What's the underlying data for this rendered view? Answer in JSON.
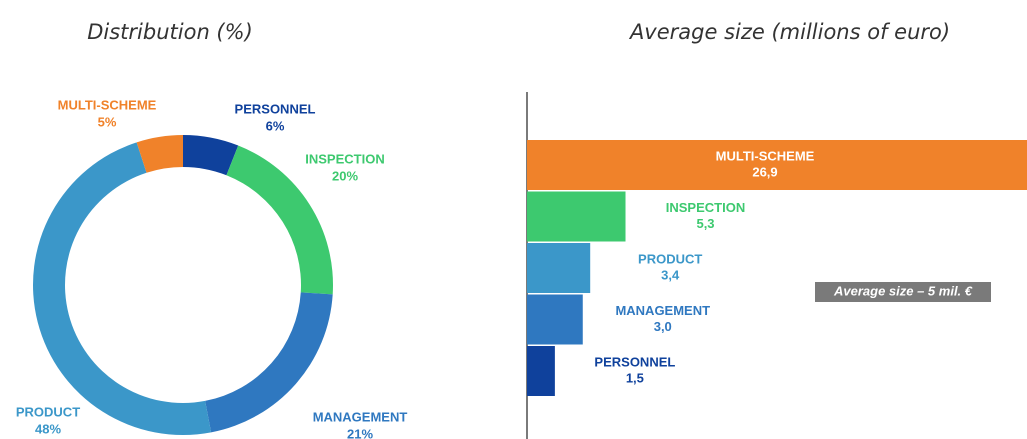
{
  "chart_data": [
    {
      "type": "donut",
      "title": "Distribution (%)",
      "categories": [
        "PERSONNEL",
        "INSPECTION",
        "MANAGEMENT",
        "PRODUCT",
        "MULTI-SCHEME"
      ],
      "values": [
        6,
        20,
        21,
        48,
        5
      ],
      "value_labels": [
        "6%",
        "20%",
        "21%",
        "48%",
        "5%"
      ],
      "colors": [
        "#0f419c",
        "#3dc96f",
        "#2f78c0",
        "#3b97c9",
        "#f0822a"
      ]
    },
    {
      "type": "hbar",
      "title": "Average size (millions of euro)",
      "categories": [
        "MULTI-SCHEME",
        "INSPECTION",
        "PRODUCT",
        "MANAGEMENT",
        "PERSONNEL"
      ],
      "values": [
        26.9,
        5.3,
        3.4,
        3.0,
        1.5
      ],
      "value_labels": [
        "26,9",
        "5,3",
        "3,4",
        "3,0",
        "1,5"
      ],
      "colors": [
        "#f0822a",
        "#3dc96f",
        "#3b97c9",
        "#2f78c0",
        "#0f419c"
      ],
      "xlim": [
        0,
        26.9
      ],
      "annotation": "Average size – 5 mil. €"
    }
  ]
}
